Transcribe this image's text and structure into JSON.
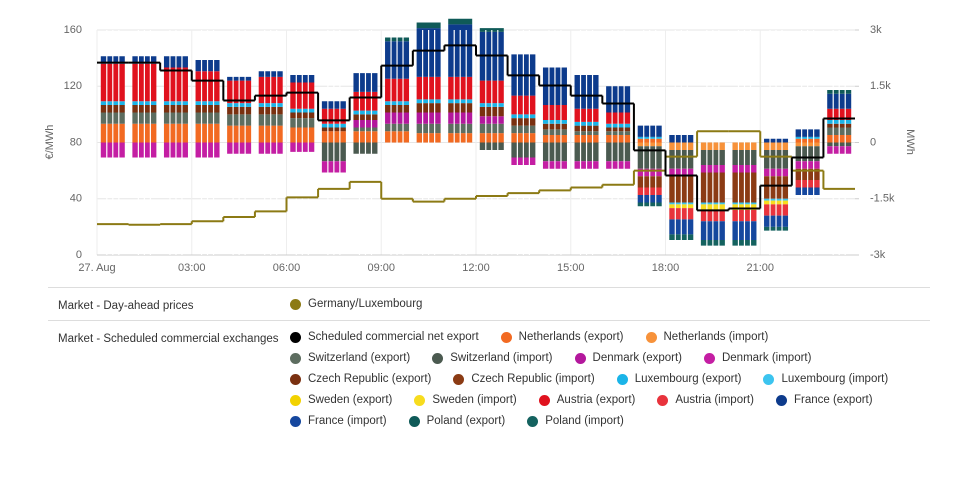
{
  "chart_data": {
    "type": "bar",
    "y_label": "€/MWh",
    "y2_label": "MWh",
    "categories": [
      "27. Aug",
      null,
      null,
      "03:00",
      null,
      null,
      "06:00",
      null,
      null,
      "09:00",
      null,
      null,
      "12:00",
      null,
      null,
      "15:00",
      null,
      null,
      "18:00",
      null,
      null,
      "21:00",
      null,
      null
    ],
    "ylim": [
      0,
      160
    ],
    "yticks": [
      0,
      40,
      80,
      120,
      160
    ],
    "y2lim": [
      -3000,
      3000
    ],
    "y2ticks": [
      {
        "value": -3000,
        "label": "-3k"
      },
      {
        "value": -1500,
        "label": "-1.5k"
      },
      0,
      {
        "value": 1500,
        "label": "1.5k"
      },
      {
        "value": 3000,
        "label": "3k"
      }
    ],
    "grid": true,
    "legend_titles": [
      "Market - Day-ahead prices",
      "Market - Scheduled commercial exchanges"
    ],
    "series": [
      {
        "name": "Germany/Luxembourg",
        "type": "line",
        "axis": "y",
        "color": "#8c7a14",
        "values": [
          22,
          21.5,
          22,
          24,
          27,
          31,
          41,
          47,
          52,
          40,
          38,
          40,
          42,
          44,
          46,
          48,
          50,
          60,
          70,
          88,
          88,
          70,
          60,
          47
        ]
      },
      {
        "name": "Scheduled commercial net export",
        "type": "line",
        "axis": "y2",
        "color": "#000000",
        "values": [
          2130,
          2130,
          1920,
          1650,
          1120,
          1250,
          1330,
          590,
          1200,
          2050,
          2450,
          2590,
          2320,
          1790,
          1520,
          1250,
          1040,
          -210,
          -880,
          -1810,
          -1760,
          -1150,
          -400,
          640
        ]
      },
      {
        "name": "Netherlands (export)",
        "axis": "y2",
        "color": "#f26a22",
        "values": [
          500,
          500,
          500,
          500,
          450,
          450,
          400,
          300,
          300,
          300,
          250,
          250,
          250,
          250,
          200,
          200,
          200,
          100,
          0,
          0,
          0,
          0,
          100,
          200
        ]
      },
      {
        "name": "Netherlands (import)",
        "axis": "y2",
        "color": "#f7923a",
        "values": [
          0,
          0,
          0,
          0,
          0,
          0,
          0,
          0,
          0,
          0,
          0,
          0,
          0,
          0,
          0,
          0,
          0,
          -100,
          -200,
          -200,
          -200,
          -200,
          -100,
          0
        ]
      },
      {
        "name": "Switzerland (export)",
        "axis": "y2",
        "color": "#5d6d60",
        "values": [
          300,
          300,
          300,
          300,
          300,
          300,
          250,
          0,
          100,
          200,
          250,
          250,
          250,
          200,
          150,
          100,
          100,
          0,
          0,
          0,
          0,
          0,
          0,
          200
        ]
      },
      {
        "name": "Switzerland (import)",
        "axis": "y2",
        "color": "#4b5a50",
        "values": [
          0,
          0,
          0,
          0,
          0,
          0,
          0,
          -500,
          -300,
          0,
          0,
          0,
          -200,
          -400,
          -500,
          -500,
          -500,
          -600,
          -500,
          -400,
          -400,
          -500,
          -400,
          -100
        ]
      },
      {
        "name": "Denmark (export)",
        "axis": "y2",
        "color": "#b3179c",
        "values": [
          0,
          0,
          0,
          0,
          0,
          0,
          0,
          0,
          200,
          300,
          300,
          300,
          200,
          0,
          0,
          0,
          0,
          0,
          0,
          0,
          0,
          0,
          0,
          0
        ]
      },
      {
        "name": "Denmark (import)",
        "axis": "y2",
        "color": "#c41ea3",
        "values": [
          -400,
          -400,
          -400,
          -400,
          -300,
          -300,
          -250,
          -300,
          0,
          0,
          0,
          0,
          0,
          -200,
          -200,
          -200,
          -200,
          -200,
          -200,
          -200,
          -200,
          -200,
          -200,
          -200
        ]
      },
      {
        "name": "Czech Republic (export)",
        "axis": "y2",
        "color": "#7a3010",
        "values": [
          200,
          200,
          200,
          200,
          200,
          200,
          150,
          100,
          150,
          200,
          250,
          250,
          250,
          200,
          150,
          150,
          100,
          0,
          0,
          0,
          0,
          0,
          0,
          100
        ]
      },
      {
        "name": "Czech Republic (import)",
        "axis": "y2",
        "color": "#8b3b14",
        "values": [
          0,
          0,
          0,
          0,
          0,
          0,
          0,
          0,
          0,
          0,
          0,
          0,
          0,
          0,
          0,
          0,
          0,
          -300,
          -700,
          -800,
          -800,
          -600,
          -300,
          0
        ]
      },
      {
        "name": "Luxembourg (export)",
        "axis": "y2",
        "color": "#1ab4e8",
        "values": [
          100,
          100,
          100,
          100,
          100,
          100,
          100,
          100,
          100,
          100,
          100,
          100,
          100,
          100,
          100,
          100,
          100,
          50,
          0,
          0,
          0,
          0,
          50,
          100
        ]
      },
      {
        "name": "Luxembourg (import)",
        "axis": "y2",
        "color": "#3cc4ef",
        "values": [
          0,
          0,
          0,
          0,
          0,
          0,
          0,
          0,
          0,
          0,
          0,
          0,
          0,
          0,
          0,
          0,
          0,
          0,
          -50,
          -50,
          -50,
          -50,
          0,
          0
        ]
      },
      {
        "name": "Sweden (export)",
        "axis": "y2",
        "color": "#f2d200",
        "values": [
          0,
          0,
          0,
          0,
          0,
          0,
          0,
          0,
          0,
          0,
          0,
          0,
          0,
          0,
          0,
          0,
          0,
          0,
          0,
          0,
          0,
          0,
          0,
          0
        ]
      },
      {
        "name": "Sweden (import)",
        "axis": "y2",
        "color": "#f7dc1e",
        "values": [
          0,
          0,
          0,
          0,
          0,
          0,
          0,
          0,
          0,
          0,
          0,
          0,
          0,
          0,
          0,
          0,
          0,
          0,
          -100,
          -150,
          -150,
          -100,
          0,
          0
        ]
      },
      {
        "name": "Austria (export)",
        "axis": "y2",
        "color": "#e0121e",
        "values": [
          1000,
          1000,
          900,
          800,
          600,
          700,
          700,
          400,
          500,
          600,
          600,
          600,
          600,
          500,
          400,
          350,
          300,
          0,
          0,
          0,
          0,
          0,
          0,
          300
        ]
      },
      {
        "name": "Austria (import)",
        "axis": "y2",
        "color": "#e8333c",
        "values": [
          0,
          0,
          0,
          0,
          0,
          0,
          0,
          0,
          0,
          0,
          0,
          0,
          0,
          0,
          0,
          0,
          0,
          -200,
          -300,
          -300,
          -300,
          -300,
          -200,
          0
        ]
      },
      {
        "name": "France (export)",
        "axis": "y2",
        "color": "#0d3b8c",
        "values": [
          200,
          200,
          300,
          300,
          100,
          150,
          200,
          200,
          500,
          1000,
          1300,
          1400,
          1300,
          1100,
          1000,
          900,
          700,
          300,
          200,
          0,
          0,
          100,
          200,
          400
        ]
      },
      {
        "name": "France (import)",
        "axis": "y2",
        "color": "#15479e",
        "values": [
          0,
          0,
          0,
          0,
          0,
          0,
          0,
          0,
          0,
          0,
          0,
          0,
          0,
          0,
          0,
          0,
          0,
          -200,
          -400,
          -500,
          -500,
          -300,
          -200,
          0
        ]
      },
      {
        "name": "Poland (export)",
        "axis": "y2",
        "color": "#0f5a58",
        "values": [
          0,
          0,
          0,
          0,
          0,
          0,
          0,
          0,
          0,
          100,
          150,
          150,
          100,
          0,
          0,
          0,
          0,
          0,
          0,
          0,
          0,
          0,
          0,
          100
        ]
      },
      {
        "name": "Poland (import)",
        "axis": "y2",
        "color": "#14625f",
        "values": [
          0,
          0,
          0,
          0,
          0,
          0,
          0,
          0,
          0,
          0,
          0,
          0,
          0,
          0,
          0,
          0,
          0,
          -100,
          -150,
          -150,
          -150,
          -100,
          0,
          0
        ]
      }
    ]
  }
}
